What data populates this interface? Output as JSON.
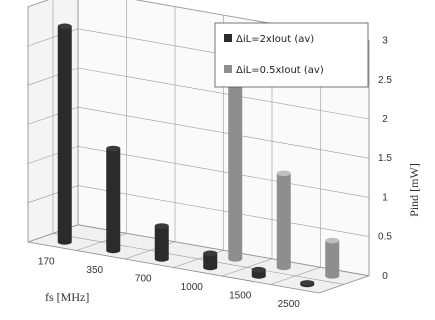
{
  "chart_data": {
    "type": "bar",
    "title": "",
    "xlabel": "fs [MHz]",
    "ylabel": "Pind [mW]",
    "categories": [
      "170",
      "350",
      "700",
      "1000",
      "1500",
      "2500"
    ],
    "yticks": [
      "0",
      "0.5",
      "1",
      "1.5",
      "2",
      "2.5",
      "3"
    ],
    "ylim": [
      0,
      3
    ],
    "grid": true,
    "legend_position": "top-right",
    "series": [
      {
        "name": "ΔiL=2xIout (av)",
        "color": "#2b2b2b",
        "values": [
          2.75,
          1.3,
          0.42,
          0.18,
          0.08,
          0.02
        ]
      },
      {
        "name": "ΔiL=0.5xIout (av)",
        "color": "#8e8e8e",
        "values": [
          null,
          null,
          null,
          2.65,
          1.2,
          0.45
        ]
      }
    ]
  }
}
